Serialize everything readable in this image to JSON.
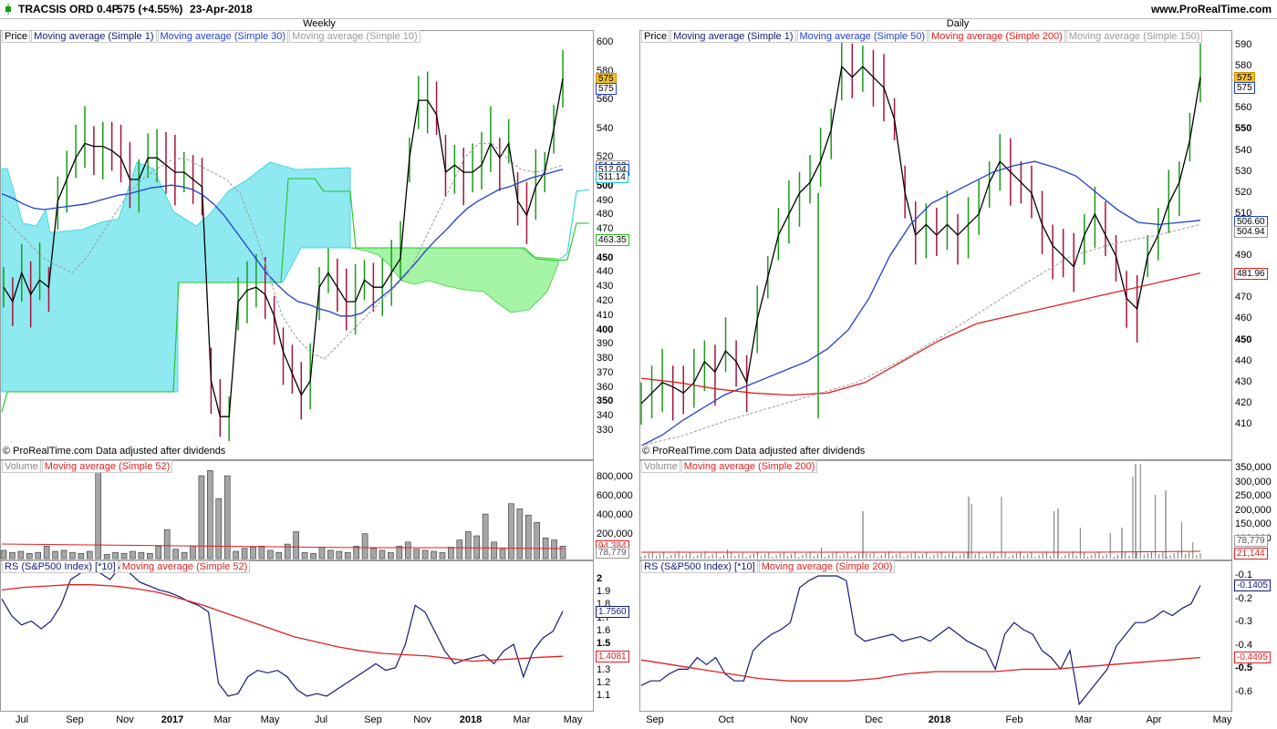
{
  "header": {
    "instrument": "TRACSIS ORD 0.4P",
    "quote": "575 (+4.55%)",
    "date": "23-Apr-2018",
    "site": "www.ProRealTime.com"
  },
  "colors": {
    "green": "#1a9a1a",
    "red": "#a8123a",
    "black": "#000000",
    "ma_blue": "#1f3fd0",
    "ma_red": "#e0201f",
    "ma_grey": "#9a9a9a",
    "cloud_cyan": "#8fe9f0",
    "cloud_green": "#a6f4a6",
    "rs": "#131a78"
  },
  "weekly": {
    "title": "Weekly",
    "price_legend": [
      "Price",
      "Moving average (Simple 1)",
      "Moving average (Simple 30)",
      "Moving average (Simple 10)"
    ],
    "copyright": "© ProRealTime.com  Data adjusted after dividends",
    "price_ticks": [
      {
        "v": "600",
        "b": false
      },
      {
        "v": "580",
        "b": false
      },
      {
        "v": "560",
        "b": false
      },
      {
        "v": "540",
        "b": false
      },
      {
        "v": "520",
        "b": false
      },
      {
        "v": "500",
        "b": true
      },
      {
        "v": "490",
        "b": false
      },
      {
        "v": "480",
        "b": false
      },
      {
        "v": "470",
        "b": false
      },
      {
        "v": "460",
        "b": false
      },
      {
        "v": "450",
        "b": true
      },
      {
        "v": "440",
        "b": false
      },
      {
        "v": "430",
        "b": false
      },
      {
        "v": "420",
        "b": false
      },
      {
        "v": "410",
        "b": false
      },
      {
        "v": "400",
        "b": true
      },
      {
        "v": "390",
        "b": false
      },
      {
        "v": "380",
        "b": false
      },
      {
        "v": "370",
        "b": false
      },
      {
        "v": "360",
        "b": false
      },
      {
        "v": "350",
        "b": true
      },
      {
        "v": "340",
        "b": false
      },
      {
        "v": "330",
        "b": false
      }
    ],
    "price_tags": [
      {
        "v": "575",
        "price": 575,
        "bg": "#f0c030",
        "border": "#c89000"
      },
      {
        "v": "575",
        "price": 568,
        "bg": "#ffffff",
        "border": "#1f3fd0"
      },
      {
        "v": "514.63",
        "price": 514.6,
        "bg": "#ffffff",
        "border": "#999999"
      },
      {
        "v": "512.04",
        "price": 512.0,
        "bg": "#ffffff",
        "border": "#1f3fd0"
      },
      {
        "v": "511.14",
        "price": 507.0,
        "bg": "#ffffff",
        "border": "#17c7d3"
      },
      {
        "v": "463.35",
        "price": 463.35,
        "bg": "#ffffff",
        "border": "#22c222"
      }
    ],
    "volume_legend": [
      "Volume",
      "Moving average (Simple 52)"
    ],
    "volume_ticks": [
      "800,000",
      "600,000",
      "400,000",
      "200,000"
    ],
    "volume_tags": [
      {
        "v": "94,384",
        "c": "#e0201f"
      },
      {
        "v": "78,779",
        "c": "#999999"
      }
    ],
    "rs_legend": [
      "RS (S&P500 Index) [*10]",
      "Moving average (Simple 52)"
    ],
    "rs_ticks": [
      {
        "v": "2",
        "b": true
      },
      {
        "v": "1.9",
        "b": false
      },
      {
        "v": "1.8",
        "b": false
      },
      {
        "v": "1.7",
        "b": false
      },
      {
        "v": "1.6",
        "b": false
      },
      {
        "v": "1.5",
        "b": true
      },
      {
        "v": "1.4",
        "b": false
      },
      {
        "v": "1.3",
        "b": false
      },
      {
        "v": "1.2",
        "b": false
      },
      {
        "v": "1.1",
        "b": false
      }
    ],
    "rs_tags": [
      {
        "v": "1.7560",
        "price": 1.756,
        "c": "#131a78"
      },
      {
        "v": "1.4081",
        "price": 1.408,
        "c": "#e0201f"
      }
    ],
    "x_labels": [
      {
        "t": "Jul",
        "x": 24,
        "b": false
      },
      {
        "t": "Sep",
        "x": 82,
        "b": false
      },
      {
        "t": "Nov",
        "x": 137,
        "b": false
      },
      {
        "t": "2017",
        "x": 189,
        "b": true
      },
      {
        "t": "Mar",
        "x": 244,
        "b": false
      },
      {
        "t": "May",
        "x": 296,
        "b": false
      },
      {
        "t": "Jul",
        "x": 352,
        "b": false
      },
      {
        "t": "Sep",
        "x": 409,
        "b": false
      },
      {
        "t": "Nov",
        "x": 463,
        "b": false
      },
      {
        "t": "2018",
        "x": 516,
        "b": true
      },
      {
        "t": "Mar",
        "x": 572,
        "b": false
      },
      {
        "t": "May",
        "x": 628,
        "b": false
      }
    ]
  },
  "daily": {
    "title": "Daily",
    "price_legend": [
      "Price",
      "Moving average (Simple 1)",
      "Moving average (Simple 50)",
      "Moving average (Simple 200)",
      "Moving average (Simple 150)"
    ],
    "copyright": "© ProRealTime.com  Data adjusted after dividends",
    "price_ticks": [
      {
        "v": "590",
        "b": false
      },
      {
        "v": "580",
        "b": false
      },
      {
        "v": "570",
        "b": false
      },
      {
        "v": "560",
        "b": false
      },
      {
        "v": "550",
        "b": true
      },
      {
        "v": "540",
        "b": false
      },
      {
        "v": "530",
        "b": false
      },
      {
        "v": "520",
        "b": false
      },
      {
        "v": "510",
        "b": false
      },
      {
        "v": "500",
        "b": true
      },
      {
        "v": "490",
        "b": false
      },
      {
        "v": "480",
        "b": false
      },
      {
        "v": "470",
        "b": false
      },
      {
        "v": "460",
        "b": false
      },
      {
        "v": "450",
        "b": true
      },
      {
        "v": "440",
        "b": false
      },
      {
        "v": "430",
        "b": false
      },
      {
        "v": "420",
        "b": false
      },
      {
        "v": "410",
        "b": false
      }
    ],
    "price_tags": [
      {
        "v": "575",
        "price": 575,
        "bg": "#f0c030",
        "border": "#c89000"
      },
      {
        "v": "575",
        "price": 570,
        "bg": "#ffffff",
        "border": "#1f3fd0"
      },
      {
        "v": "506.60",
        "price": 506.6,
        "bg": "#ffffff",
        "border": "#1f3fd0"
      },
      {
        "v": "504.94",
        "price": 501.8,
        "bg": "#ffffff",
        "border": "#999999"
      },
      {
        "v": "481.96",
        "price": 481.96,
        "bg": "#ffffff",
        "border": "#e0201f"
      }
    ],
    "volume_legend": [
      "Volume",
      "Moving average (Simple 200)"
    ],
    "volume_ticks": [
      "350,000",
      "300,000",
      "250,000",
      "200,000",
      "150,000",
      "100,000"
    ],
    "volume_tags": [
      {
        "v": "78,779",
        "c": "#999999"
      },
      {
        "v": "21,144",
        "c": "#e0201f"
      }
    ],
    "rs_legend": [
      "RS (S&P500 Index) [*10]",
      "Moving average (Simple 200)"
    ],
    "rs_ticks": [
      {
        "v": "-0.1",
        "b": false
      },
      {
        "v": "-0.2",
        "b": false
      },
      {
        "v": "-0.3",
        "b": false
      },
      {
        "v": "-0.4",
        "b": false
      },
      {
        "v": "-0.5",
        "b": true
      },
      {
        "v": "-0.6",
        "b": false
      }
    ],
    "rs_tags": [
      {
        "v": "-0.1405",
        "price": -0.1405,
        "c": "#131a78"
      },
      {
        "v": "-0.4495",
        "price": -0.4495,
        "c": "#e0201f"
      }
    ],
    "x_labels": [
      {
        "t": "Sep",
        "x": 718,
        "b": false
      },
      {
        "t": "Oct",
        "x": 796,
        "b": false
      },
      {
        "t": "Nov",
        "x": 876,
        "b": false
      },
      {
        "t": "Dec",
        "x": 958,
        "b": false
      },
      {
        "t": "2018",
        "x": 1030,
        "b": true
      },
      {
        "t": "Feb",
        "x": 1112,
        "b": false
      },
      {
        "t": "Mar",
        "x": 1188,
        "b": false
      },
      {
        "t": "Apr",
        "x": 1265,
        "b": false
      },
      {
        "t": "May",
        "x": 1340,
        "b": false
      }
    ]
  },
  "chart_data": [
    {
      "type": "line",
      "title": "Weekly",
      "ylim": [
        320,
        605
      ],
      "series": [
        {
          "name": "Moving average (Simple 1)",
          "values": [
            430,
            420,
            440,
            425,
            435,
            430,
            490,
            505,
            520,
            530,
            528,
            528,
            525,
            520,
            505,
            505,
            520,
            520,
            515,
            510,
            510,
            505,
            500,
            365,
            340,
            340,
            420,
            428,
            430,
            425,
            410,
            385,
            370,
            355,
            365,
            430,
            440,
            430,
            420,
            420,
            435,
            430,
            430,
            440,
            450,
            520,
            560,
            560,
            550,
            510,
            515,
            510,
            510,
            515,
            530,
            520,
            530,
            490,
            480,
            500,
            510,
            540,
            575
          ]
        },
        {
          "name": "Moving average (Simple 30)",
          "values": [
            495,
            492,
            488,
            485,
            484,
            485,
            486,
            487,
            488,
            490,
            492,
            494,
            495,
            497,
            499,
            500,
            501,
            500,
            498,
            494,
            488,
            480,
            470,
            460,
            450,
            440,
            432,
            425,
            420,
            418,
            415,
            413,
            410,
            410,
            412,
            418,
            424,
            430,
            438,
            446,
            455,
            463,
            470,
            478,
            485,
            490,
            494,
            498,
            500,
            503,
            506,
            508,
            510,
            512
          ]
        },
        {
          "name": "Moving average (Simple 10)",
          "values": [
            480,
            470,
            460,
            450,
            445,
            440,
            450,
            465,
            480,
            495,
            505,
            512,
            518,
            520,
            515,
            510,
            505,
            495,
            470,
            440,
            410,
            395,
            385,
            380,
            390,
            400,
            410,
            420,
            430,
            440,
            460,
            480,
            500,
            520,
            530,
            530,
            520,
            512,
            510,
            512,
            515
          ]
        }
      ]
    },
    {
      "type": "line",
      "title": "Daily",
      "ylim": [
        400,
        595
      ],
      "series": [
        {
          "name": "Moving average (Simple 1)",
          "values": [
            420,
            425,
            430,
            428,
            425,
            430,
            440,
            435,
            445,
            440,
            430,
            460,
            480,
            500,
            510,
            520,
            525,
            535,
            550,
            580,
            575,
            580,
            575,
            570,
            555,
            520,
            500,
            505,
            500,
            505,
            500,
            505,
            510,
            525,
            535,
            530,
            525,
            520,
            505,
            495,
            490,
            485,
            500,
            510,
            500,
            490,
            470,
            465,
            490,
            500,
            515,
            525,
            545,
            575
          ]
        },
        {
          "name": "Moving average (Simple 50)",
          "values": [
            400,
            405,
            412,
            418,
            424,
            428,
            432,
            436,
            440,
            446,
            455,
            470,
            490,
            505,
            515,
            520,
            525,
            530,
            533,
            535,
            532,
            528,
            520,
            512,
            506,
            505,
            506,
            507
          ]
        },
        {
          "name": "Moving average (Simple 200)",
          "values": [
            432,
            430,
            427,
            425,
            424,
            425,
            430,
            440,
            450,
            458,
            462,
            466,
            470,
            474,
            478,
            482
          ]
        },
        {
          "name": "Moving average (Simple 150)",
          "values": [
            400,
            405,
            412,
            418,
            424,
            430,
            440,
            452,
            465,
            478,
            490,
            496,
            500,
            505
          ]
        }
      ]
    },
    {
      "type": "bar",
      "title": "Volume",
      "series": [
        {
          "name": "Volume",
          "values": [
            80000,
            60000,
            70000,
            50000,
            60000,
            120000,
            70000,
            80000,
            60000,
            50000,
            70000,
            880000,
            40000,
            60000,
            50000,
            70000,
            60000,
            50000,
            120000,
            280000,
            90000,
            60000,
            120000,
            800000,
            850000,
            580000,
            800000,
            70000,
            100000,
            110000,
            120000,
            80000,
            60000,
            140000,
            260000,
            60000,
            50000,
            110000,
            80000,
            70000,
            60000,
            120000,
            240000,
            100000,
            80000,
            60000,
            120000,
            160000,
            90000,
            80000,
            70000,
            60000,
            110000,
            180000,
            260000,
            220000,
            430000,
            160000,
            90000,
            530000,
            480000,
            420000,
            350000,
            200000,
            180000,
            120000
          ]
        }
      ]
    },
    {
      "type": "line",
      "title": "RS (S&P500 Index) [*10]",
      "series": [
        {
          "name": "RS (S&P500 Index) [*10]",
          "values": [
            1.85,
            1.72,
            1.65,
            1.68,
            1.62,
            1.68,
            1.8,
            2.0,
            2.05,
            2.1,
            2.05,
            2.0,
            2.1,
            2.05,
            1.98,
            1.95,
            1.92,
            1.9,
            1.87,
            1.83,
            1.8,
            1.75,
            1.2,
            1.1,
            1.12,
            1.25,
            1.3,
            1.28,
            1.3,
            1.25,
            1.15,
            1.1,
            1.12,
            1.1,
            1.15,
            1.2,
            1.25,
            1.3,
            1.35,
            1.3,
            1.32,
            1.5,
            1.8,
            1.75,
            1.6,
            1.45,
            1.35,
            1.38,
            1.4,
            1.42,
            1.35,
            1.45,
            1.5,
            1.25,
            1.45,
            1.55,
            1.6,
            1.756
          ]
        },
        {
          "name": "Moving average (Simple 52)",
          "values": [
            1.92,
            1.94,
            1.95,
            1.96,
            1.96,
            1.95,
            1.93,
            1.9,
            1.85,
            1.8,
            1.74,
            1.68,
            1.62,
            1.56,
            1.52,
            1.48,
            1.45,
            1.43,
            1.42,
            1.41,
            1.39,
            1.37,
            1.38,
            1.39,
            1.4,
            1.408
          ]
        }
      ]
    }
  ]
}
